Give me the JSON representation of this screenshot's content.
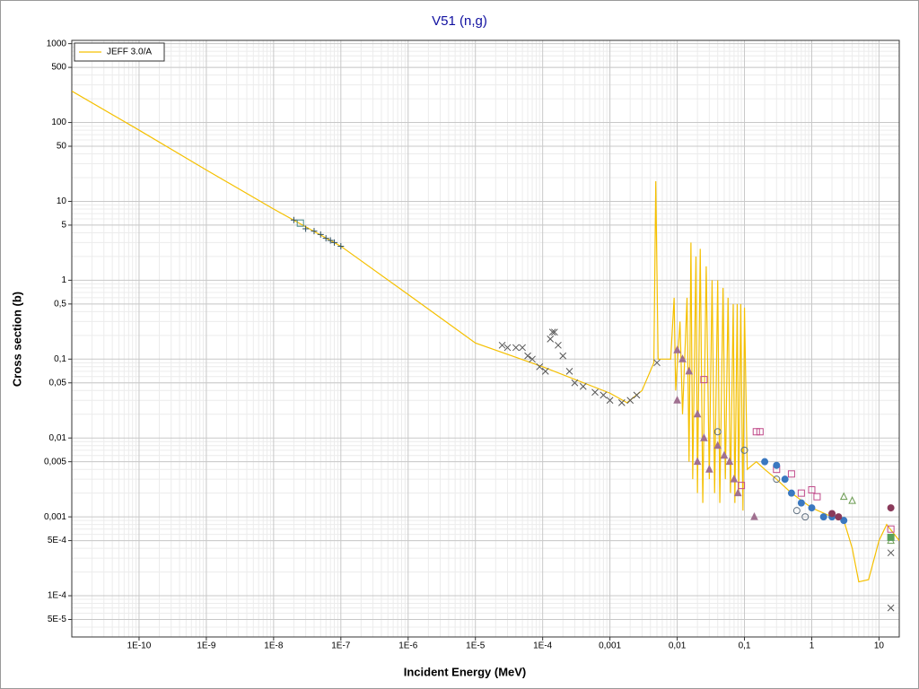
{
  "chart_data": {
    "type": "line",
    "title": "V51 (n,g)",
    "x_label": "Incident Energy (MeV)",
    "y_label": "Cross section (b)",
    "log_x": true,
    "log_y": true,
    "grid": true,
    "minor_grid": true,
    "legend": "upper left",
    "xlim": [
      1e-11,
      20
    ],
    "ylim": [
      3e-05,
      1100
    ],
    "xticks": [
      {
        "value": 1e-10,
        "label": "1E-10"
      },
      {
        "value": 1e-09,
        "label": "1E-9"
      },
      {
        "value": 1e-08,
        "label": "1E-8"
      },
      {
        "value": 1e-07,
        "label": "1E-7"
      },
      {
        "value": 1e-06,
        "label": "1E-6"
      },
      {
        "value": 1e-05,
        "label": "1E-5"
      },
      {
        "value": 0.0001,
        "label": "1E-4"
      },
      {
        "value": 0.001,
        "label": "0,001"
      },
      {
        "value": 0.01,
        "label": "0,01"
      },
      {
        "value": 0.1,
        "label": "0,1"
      },
      1,
      10
    ],
    "yticks": [
      1000,
      500,
      100,
      50,
      10,
      5,
      1,
      {
        "value": 0.5,
        "label": "0,5"
      },
      {
        "value": 0.1,
        "label": "0,1"
      },
      {
        "value": 0.05,
        "label": "0,05"
      },
      {
        "value": 0.01,
        "label": "0,01"
      },
      {
        "value": 0.005,
        "label": "0,005"
      },
      {
        "value": 0.001,
        "label": "0,001"
      },
      {
        "value": 0.0005,
        "label": "5E-4"
      },
      {
        "value": 0.0001,
        "label": "1E-4"
      },
      {
        "value": 5e-05,
        "label": "5E-5"
      }
    ],
    "series": [
      {
        "name": "JEFF 3.0/A",
        "color": "#f5c000",
        "x": [
          1e-11,
          1e-10,
          1e-09,
          1e-08,
          1e-07,
          1e-06,
          1e-05,
          0.0001,
          0.001,
          0.0018,
          0.003,
          0.0045,
          0.0048,
          0.0052,
          0.008,
          0.009,
          0.0095,
          0.011,
          0.012,
          0.014,
          0.015,
          0.016,
          0.017,
          0.019,
          0.02,
          0.022,
          0.024,
          0.027,
          0.03,
          0.033,
          0.036,
          0.04,
          0.043,
          0.048,
          0.052,
          0.057,
          0.062,
          0.068,
          0.072,
          0.078,
          0.082,
          0.088,
          0.095,
          0.1,
          0.11,
          0.15,
          0.2,
          0.3,
          0.5,
          1,
          2,
          3,
          4,
          5,
          7,
          10,
          13,
          20
        ],
        "values": [
          250,
          80,
          25,
          8,
          2.7,
          0.66,
          0.16,
          0.08,
          0.037,
          0.028,
          0.04,
          0.09,
          18,
          0.1,
          0.1,
          0.6,
          0.04,
          0.3,
          0.02,
          0.6,
          0.005,
          3,
          0.003,
          2,
          0.002,
          2.5,
          0.0015,
          1.5,
          0.003,
          1,
          0.002,
          1,
          0.0015,
          0.8,
          0.003,
          0.6,
          0.002,
          0.5,
          0.0015,
          0.5,
          0.002,
          0.5,
          0.0012,
          0.45,
          0.004,
          0.005,
          0.004,
          0.003,
          0.002,
          0.0013,
          0.001,
          0.0009,
          0.0004,
          0.00015,
          0.00016,
          0.0005,
          0.0008,
          0.0005
        ]
      },
      {
        "marker": "x",
        "color": "#555555",
        "x": [
          2.5e-05,
          3e-05,
          4e-05,
          5e-05,
          6e-05,
          7e-05,
          9e-05,
          0.00011,
          0.00013,
          0.00014,
          0.00015,
          0.00017,
          0.0002,
          0.00025,
          0.0003,
          0.0004,
          0.0006,
          0.0008,
          0.001,
          0.0015,
          0.002,
          0.0025,
          0.005,
          15,
          15
        ],
        "values": [
          0.15,
          0.14,
          0.14,
          0.14,
          0.11,
          0.1,
          0.08,
          0.07,
          0.18,
          0.22,
          0.22,
          0.15,
          0.11,
          0.07,
          0.05,
          0.045,
          0.038,
          0.035,
          0.03,
          0.028,
          0.03,
          0.035,
          0.09,
          7e-05,
          0.00035
        ]
      },
      {
        "marker": "+",
        "color": "#2f4f5f",
        "x": [
          2e-08,
          3e-08,
          4e-08,
          5e-08,
          6e-08,
          7e-08,
          8e-08,
          1e-07
        ],
        "values": [
          5.8,
          4.5,
          4.2,
          3.8,
          3.4,
          3.2,
          3,
          2.7
        ]
      },
      {
        "marker": "square-open",
        "color": "#4a8a8a",
        "x": [
          2.5e-08
        ],
        "values": [
          5.3
        ]
      },
      {
        "marker": "triangle",
        "color": "#a07090",
        "x": [
          0.01,
          0.012,
          0.015,
          0.02,
          0.025,
          0.03,
          0.04,
          0.05,
          0.06,
          0.07,
          0.08,
          0.14,
          0.02,
          0.01
        ],
        "values": [
          0.13,
          0.1,
          0.07,
          0.02,
          0.01,
          0.004,
          0.008,
          0.006,
          0.005,
          0.003,
          0.002,
          0.001,
          0.005,
          0.03
        ]
      },
      {
        "marker": "square-open",
        "color": "#c04a8a",
        "x": [
          0.025,
          0.15,
          0.17,
          0.3,
          0.5,
          0.7,
          1,
          1.2,
          15,
          0.09
        ],
        "values": [
          0.055,
          0.012,
          0.012,
          0.004,
          0.0035,
          0.002,
          0.0022,
          0.0018,
          0.0007,
          0.0025
        ]
      },
      {
        "marker": "circle",
        "color": "#3a78c0",
        "x": [
          0.2,
          0.3,
          0.4,
          0.5,
          0.7,
          1,
          1.5,
          2,
          3
        ],
        "values": [
          0.005,
          0.0045,
          0.003,
          0.002,
          0.0015,
          0.0013,
          0.001,
          0.001,
          0.0009
        ]
      },
      {
        "marker": "circle-open",
        "color": "#607080",
        "x": [
          0.04,
          0.1,
          0.3,
          0.6,
          0.8
        ],
        "values": [
          0.012,
          0.007,
          0.003,
          0.0012,
          0.001
        ]
      },
      {
        "marker": "triangle-open",
        "color": "#6a9a50",
        "x": [
          3,
          4,
          15
        ],
        "values": [
          0.0018,
          0.0016,
          0.0005
        ]
      },
      {
        "marker": "circle",
        "color": "#8a3a5a",
        "x": [
          15,
          2,
          2.5
        ],
        "values": [
          0.0013,
          0.0011,
          0.001
        ]
      },
      {
        "marker": "square",
        "color": "#5aa05a",
        "x": [
          15
        ],
        "values": [
          0.00055
        ]
      }
    ]
  }
}
